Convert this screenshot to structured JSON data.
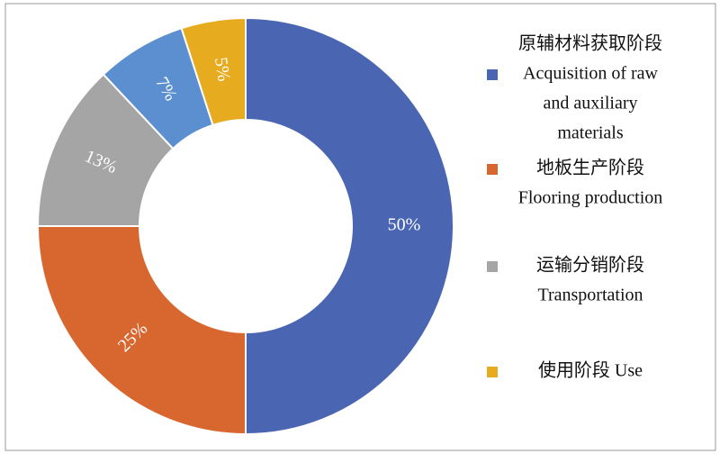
{
  "chart_data": {
    "type": "donut",
    "categories": [
      [
        "原辅材料获取阶段",
        "Acquisition of raw",
        "and auxiliary",
        "materials"
      ],
      [
        "地板生产阶段",
        "Flooring production"
      ],
      [
        "运输分销阶段",
        "Transportation"
      ],
      null,
      [
        "使用阶段 Use"
      ]
    ],
    "values": [
      50,
      25,
      13,
      7,
      5
    ],
    "value_labels": [
      "50%",
      "25%",
      "13%",
      "7%",
      "5%"
    ],
    "colors": [
      "#4a66b2",
      "#d8672f",
      "#a5a5a5",
      "#5b8fd0",
      "#e6ab1e"
    ],
    "legend": "right"
  }
}
